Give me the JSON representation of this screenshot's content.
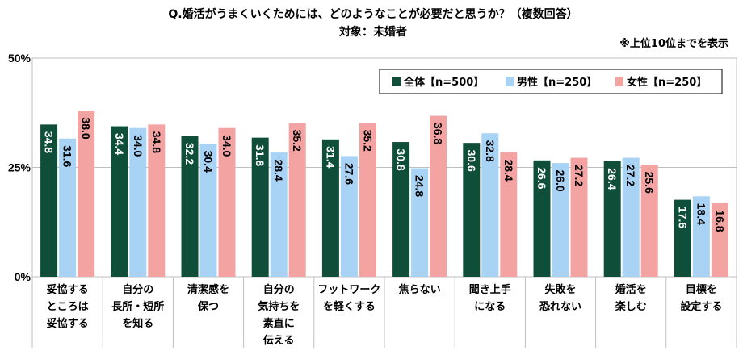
{
  "title_line1": "Q.婚活がうまくいくためには、どのようなことが必要だと思うか？（複数回答）",
  "title_line2": "対象：未婚者",
  "note": "※上位10位までを表示",
  "chart_data": {
    "type": "bar",
    "categories": [
      [
        "妥協する",
        "ところは",
        "妥協する"
      ],
      [
        "自分の",
        "長所・短所",
        "を知る"
      ],
      [
        "清潔感を",
        "保つ"
      ],
      [
        "自分の",
        "気持ちを",
        "素直に",
        "伝える"
      ],
      [
        "フットワーク",
        "を軽くする"
      ],
      [
        "焦らない"
      ],
      [
        "聞き上手",
        "になる"
      ],
      [
        "失敗を",
        "恐れない"
      ],
      [
        "婚活を",
        "楽しむ"
      ],
      [
        "目標を",
        "設定する"
      ]
    ],
    "series": [
      {
        "name": "全体【n=500】",
        "color": "#0f4f3a",
        "values": [
          34.8,
          34.4,
          32.2,
          31.8,
          31.4,
          30.8,
          30.6,
          26.6,
          26.4,
          17.6
        ],
        "labels": [
          "34.8",
          "34.4",
          "32.2",
          "31.8",
          "31.4",
          "30.8",
          "30.6",
          "26.6",
          "26.4",
          "17.6"
        ]
      },
      {
        "name": "男性【n=250】",
        "color": "#a9d3f5",
        "values": [
          31.6,
          34.0,
          30.4,
          28.4,
          27.6,
          24.8,
          32.8,
          26.0,
          27.2,
          18.4
        ],
        "labels": [
          "31.6",
          "34.0",
          "30.4",
          "28.4",
          "27.6",
          "24.8",
          "32.8",
          "26.0",
          "27.2",
          "18.4"
        ]
      },
      {
        "name": "女性【n=250】",
        "color": "#f4a3a3",
        "values": [
          38.0,
          34.8,
          34.0,
          35.2,
          35.2,
          36.8,
          28.4,
          27.2,
          25.6,
          16.8
        ],
        "labels": [
          "38.0",
          "34.8",
          "34.0",
          "35.2",
          "35.2",
          "36.8",
          "28.4",
          "27.2",
          "25.6",
          "16.8"
        ]
      }
    ],
    "yticks": [
      {
        "value": 0,
        "label": "0%"
      },
      {
        "value": 25,
        "label": "25%"
      },
      {
        "value": 50,
        "label": "50%"
      }
    ],
    "ylim": [
      0,
      50
    ],
    "grid": true,
    "legend_position": "top-right"
  }
}
